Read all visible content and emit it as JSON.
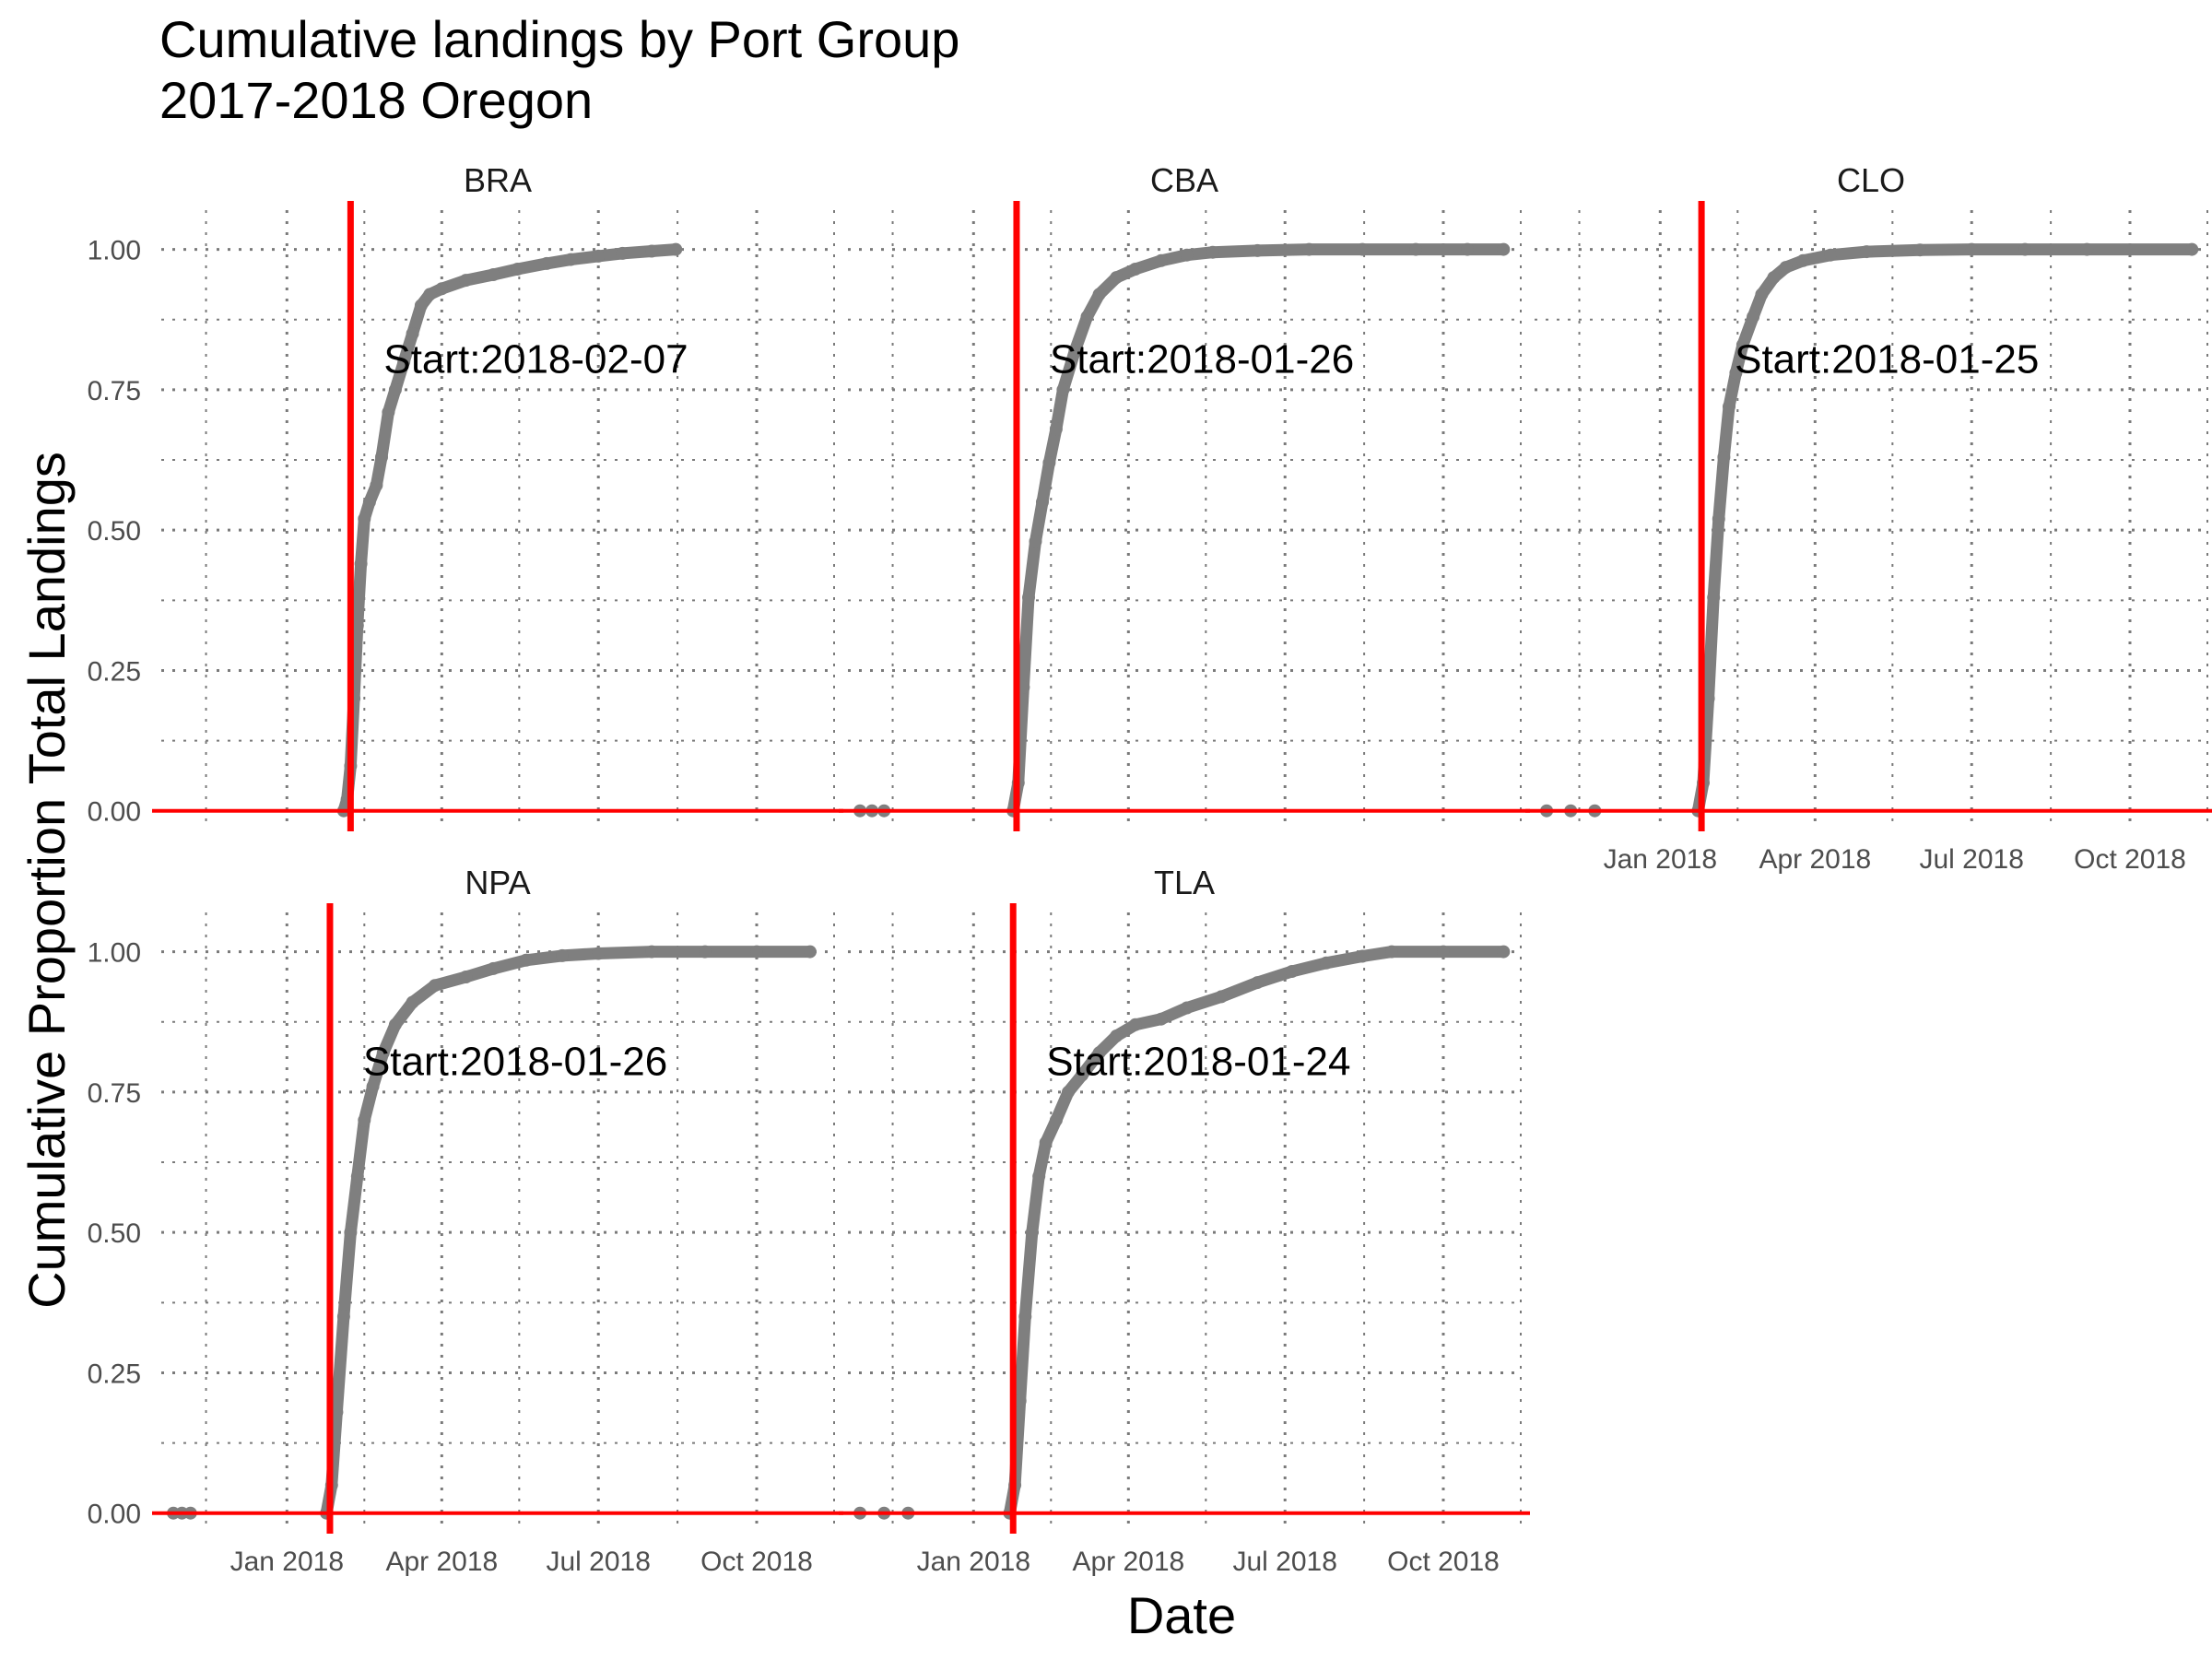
{
  "chart_data": {
    "type": "line",
    "title": "Cumulative landings by Port Group",
    "subtitle": "2017-2018 Oregon",
    "xlabel": "Date",
    "ylabel": "Cumulative Proportion Total Landings",
    "xlim": [
      "2017-10-20",
      "2018-11-15"
    ],
    "ylim": [
      -0.03,
      1.07
    ],
    "x_ticks": [
      {
        "date": "2018-01-01",
        "label": "Jan 2018"
      },
      {
        "date": "2018-04-01",
        "label": "Apr 2018"
      },
      {
        "date": "2018-07-01",
        "label": "Jul 2018"
      },
      {
        "date": "2018-10-01",
        "label": "Oct 2018"
      }
    ],
    "y_ticks": [
      {
        "value": 0,
        "label": "0.00"
      },
      {
        "value": 0.25,
        "label": "0.25"
      },
      {
        "value": 0.5,
        "label": "0.50"
      },
      {
        "value": 0.75,
        "label": "0.75"
      },
      {
        "value": 1,
        "label": "1.00"
      }
    ],
    "grid": true,
    "series_color": "#7f7f7f",
    "reference_line_color": "#ff0000",
    "reference_hline_value": 0,
    "panels": [
      {
        "name": "BRA",
        "start_label": "Start:2018-02-07",
        "start_date": "2018-02-07",
        "points": [
          [
            "2018-02-03",
            0.0
          ],
          [
            "2018-02-05",
            0.02
          ],
          [
            "2018-02-07",
            0.08
          ],
          [
            "2018-02-09",
            0.2
          ],
          [
            "2018-02-11",
            0.33
          ],
          [
            "2018-02-13",
            0.44
          ],
          [
            "2018-02-15",
            0.52
          ],
          [
            "2018-02-18",
            0.55
          ],
          [
            "2018-02-22",
            0.58
          ],
          [
            "2018-02-25",
            0.63
          ],
          [
            "2018-03-01",
            0.71
          ],
          [
            "2018-03-05",
            0.75
          ],
          [
            "2018-03-10",
            0.8
          ],
          [
            "2018-03-15",
            0.85
          ],
          [
            "2018-03-20",
            0.9
          ],
          [
            "2018-03-25",
            0.92
          ],
          [
            "2018-04-01",
            0.93
          ],
          [
            "2018-04-15",
            0.945
          ],
          [
            "2018-05-01",
            0.955
          ],
          [
            "2018-05-15",
            0.965
          ],
          [
            "2018-06-01",
            0.975
          ],
          [
            "2018-06-15",
            0.982
          ],
          [
            "2018-07-01",
            0.988
          ],
          [
            "2018-07-15",
            0.993
          ],
          [
            "2018-08-01",
            0.997
          ],
          [
            "2018-08-15",
            1.0
          ]
        ]
      },
      {
        "name": "CBA",
        "start_label": "Start:2018-01-26",
        "start_date": "2018-01-26",
        "points": [
          [
            "2017-10-27",
            0.0
          ],
          [
            "2017-11-03",
            0.0
          ],
          [
            "2017-11-10",
            0.0
          ],
          [
            "2018-01-24",
            0.0
          ],
          [
            "2018-01-27",
            0.05
          ],
          [
            "2018-01-30",
            0.22
          ],
          [
            "2018-02-02",
            0.38
          ],
          [
            "2018-02-06",
            0.48
          ],
          [
            "2018-02-10",
            0.55
          ],
          [
            "2018-02-14",
            0.62
          ],
          [
            "2018-02-18",
            0.68
          ],
          [
            "2018-02-22",
            0.75
          ],
          [
            "2018-03-01",
            0.82
          ],
          [
            "2018-03-08",
            0.88
          ],
          [
            "2018-03-15",
            0.92
          ],
          [
            "2018-03-25",
            0.95
          ],
          [
            "2018-04-05",
            0.965
          ],
          [
            "2018-04-20",
            0.98
          ],
          [
            "2018-05-05",
            0.99
          ],
          [
            "2018-05-20",
            0.995
          ],
          [
            "2018-06-15",
            0.998
          ],
          [
            "2018-07-15",
            1.0
          ],
          [
            "2018-08-15",
            1.0
          ],
          [
            "2018-09-15",
            1.0
          ],
          [
            "2018-10-15",
            1.0
          ],
          [
            "2018-11-05",
            1.0
          ]
        ]
      },
      {
        "name": "CLO",
        "start_label": "Start:2018-01-25",
        "start_date": "2018-01-25",
        "points": [
          [
            "2017-10-27",
            0.0
          ],
          [
            "2017-11-10",
            0.0
          ],
          [
            "2017-11-24",
            0.0
          ],
          [
            "2018-01-23",
            0.0
          ],
          [
            "2018-01-26",
            0.05
          ],
          [
            "2018-01-29",
            0.2
          ],
          [
            "2018-02-01",
            0.38
          ],
          [
            "2018-02-04",
            0.52
          ],
          [
            "2018-02-07",
            0.63
          ],
          [
            "2018-02-10",
            0.72
          ],
          [
            "2018-02-14",
            0.78
          ],
          [
            "2018-02-18",
            0.83
          ],
          [
            "2018-02-24",
            0.88
          ],
          [
            "2018-03-01",
            0.92
          ],
          [
            "2018-03-08",
            0.95
          ],
          [
            "2018-03-15",
            0.968
          ],
          [
            "2018-03-25",
            0.98
          ],
          [
            "2018-04-10",
            0.99
          ],
          [
            "2018-05-01",
            0.996
          ],
          [
            "2018-06-01",
            0.999
          ],
          [
            "2018-07-01",
            1.0
          ],
          [
            "2018-08-01",
            1.0
          ],
          [
            "2018-09-06",
            1.0
          ],
          [
            "2018-11-06",
            1.0
          ]
        ]
      },
      {
        "name": "NPA",
        "start_label": "Start:2018-01-26",
        "start_date": "2018-01-26",
        "points": [
          [
            "2017-10-27",
            0.0
          ],
          [
            "2017-11-01",
            0.0
          ],
          [
            "2017-11-06",
            0.0
          ],
          [
            "2018-01-24",
            0.0
          ],
          [
            "2018-01-27",
            0.05
          ],
          [
            "2018-01-30",
            0.18
          ],
          [
            "2018-02-03",
            0.35
          ],
          [
            "2018-02-07",
            0.5
          ],
          [
            "2018-02-11",
            0.6
          ],
          [
            "2018-02-15",
            0.7
          ],
          [
            "2018-02-20",
            0.76
          ],
          [
            "2018-02-26",
            0.82
          ],
          [
            "2018-03-05",
            0.87
          ],
          [
            "2018-03-15",
            0.91
          ],
          [
            "2018-03-28",
            0.94
          ],
          [
            "2018-04-15",
            0.955
          ],
          [
            "2018-05-01",
            0.97
          ],
          [
            "2018-05-20",
            0.985
          ],
          [
            "2018-06-10",
            0.993
          ],
          [
            "2018-07-01",
            0.997
          ],
          [
            "2018-08-01",
            1.0
          ],
          [
            "2018-09-01",
            1.0
          ],
          [
            "2018-10-01",
            1.0
          ],
          [
            "2018-11-01",
            1.0
          ]
        ]
      },
      {
        "name": "TLA",
        "start_label": "Start:2018-01-24",
        "start_date": "2018-01-24",
        "points": [
          [
            "2017-10-27",
            0.0
          ],
          [
            "2017-11-10",
            0.0
          ],
          [
            "2017-11-24",
            0.0
          ],
          [
            "2018-01-22",
            0.0
          ],
          [
            "2018-01-25",
            0.05
          ],
          [
            "2018-01-28",
            0.2
          ],
          [
            "2018-01-31",
            0.35
          ],
          [
            "2018-02-04",
            0.5
          ],
          [
            "2018-02-08",
            0.6
          ],
          [
            "2018-02-12",
            0.66
          ],
          [
            "2018-02-18",
            0.7
          ],
          [
            "2018-02-25",
            0.75
          ],
          [
            "2018-03-05",
            0.78
          ],
          [
            "2018-03-15",
            0.82
          ],
          [
            "2018-03-25",
            0.85
          ],
          [
            "2018-04-05",
            0.87
          ],
          [
            "2018-04-20",
            0.88
          ],
          [
            "2018-05-05",
            0.9
          ],
          [
            "2018-05-25",
            0.92
          ],
          [
            "2018-06-15",
            0.945
          ],
          [
            "2018-07-05",
            0.965
          ],
          [
            "2018-07-25",
            0.98
          ],
          [
            "2018-08-15",
            0.992
          ],
          [
            "2018-09-01",
            1.0
          ],
          [
            "2018-10-01",
            1.0
          ],
          [
            "2018-11-05",
            1.0
          ]
        ]
      }
    ]
  }
}
